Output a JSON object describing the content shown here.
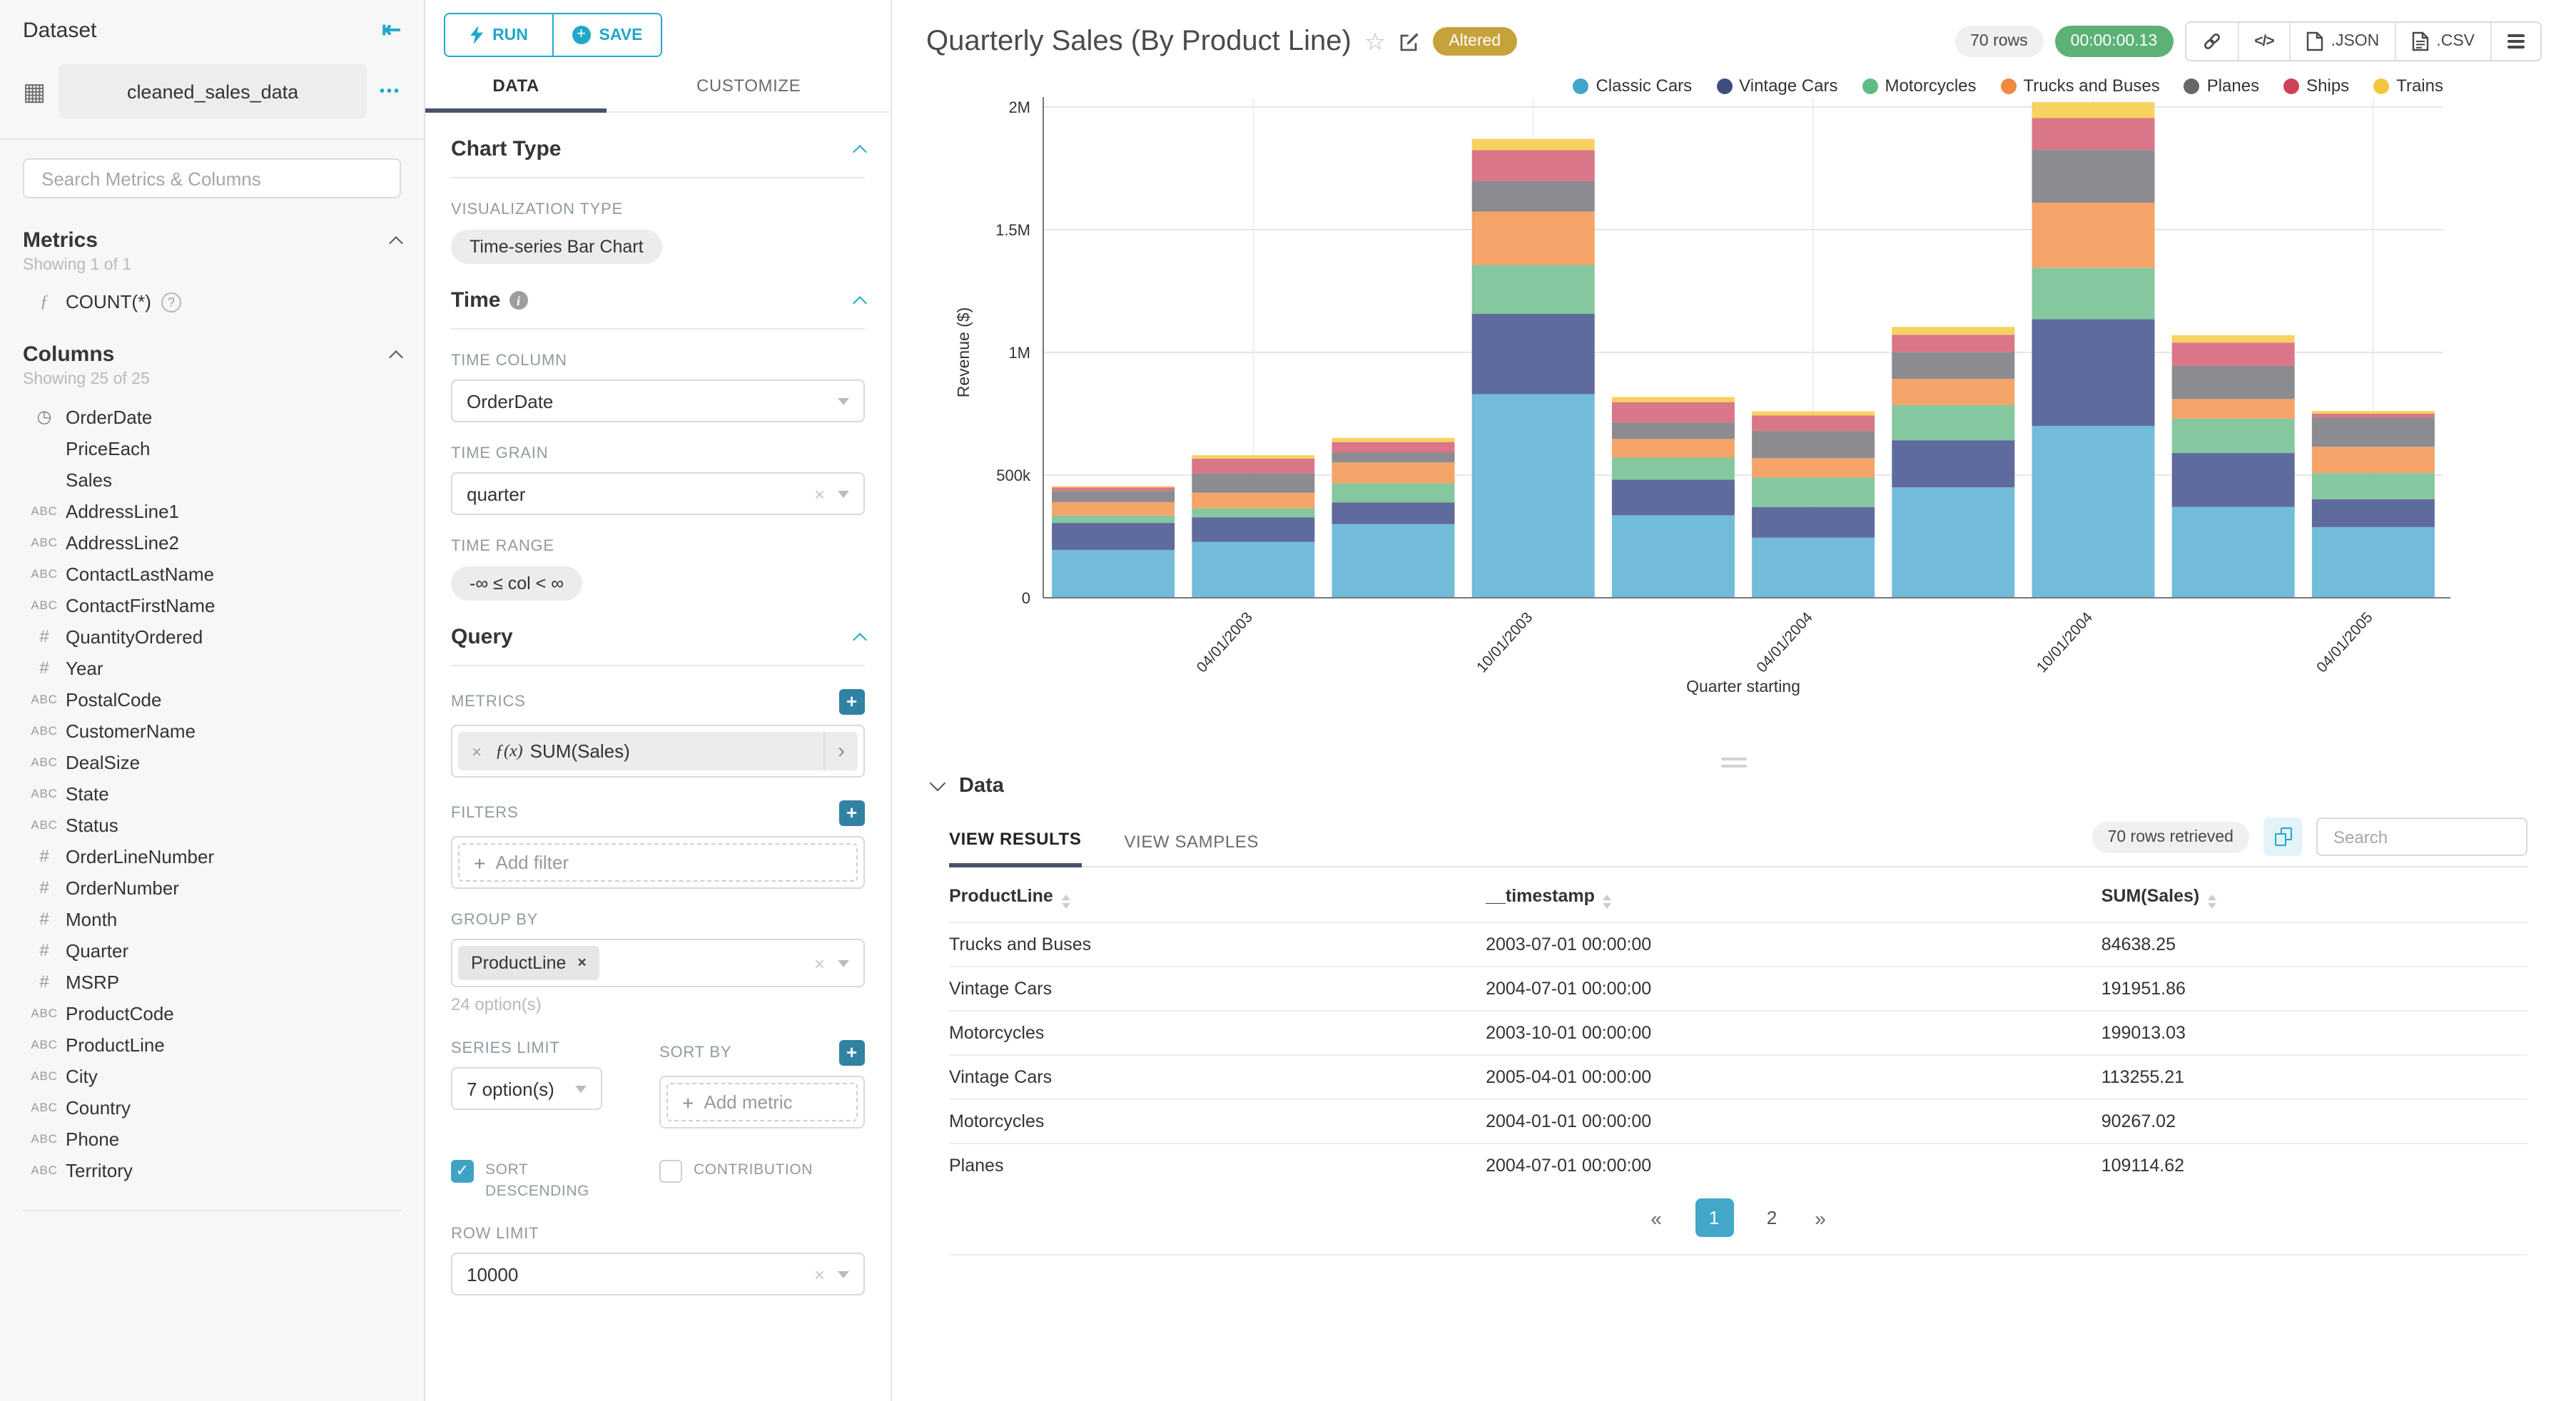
{
  "app": {
    "accent": "#20A7C9",
    "tab_underline": "#4A5268",
    "plus_button": "#3182A3",
    "checkbox_on": "#41A3C4",
    "pagination_active": "#41A8C9",
    "timer_green": "#5CB176",
    "altered_gold": "#C6A23B"
  },
  "icons": {
    "collapse": "⇤",
    "dataset_grid": "▦",
    "kebab": "•••",
    "function": "ƒ",
    "metric_fn": "ƒ(x)",
    "help": "?",
    "clock": "◷",
    "plus": "+",
    "clear": "×",
    "chip_arrow": "›",
    "check": "✓"
  },
  "sidebar": {
    "title": "Dataset",
    "dataset_name": "cleaned_sales_data",
    "search_placeholder": "Search Metrics & Columns",
    "metrics_section": {
      "title": "Metrics",
      "showing": "Showing 1 of 1",
      "metric_label": "COUNT(*)"
    },
    "columns_section": {
      "title": "Columns",
      "showing": "Showing 25 of 25",
      "items": [
        {
          "type": "time",
          "label": "OrderDate"
        },
        {
          "type": "",
          "label": "PriceEach"
        },
        {
          "type": "",
          "label": "Sales"
        },
        {
          "type": "str",
          "label": "AddressLine1"
        },
        {
          "type": "str",
          "label": "AddressLine2"
        },
        {
          "type": "str",
          "label": "ContactLastName"
        },
        {
          "type": "str",
          "label": "ContactFirstName"
        },
        {
          "type": "num",
          "label": "QuantityOrdered"
        },
        {
          "type": "num",
          "label": "Year"
        },
        {
          "type": "str",
          "label": "PostalCode"
        },
        {
          "type": "str",
          "label": "CustomerName"
        },
        {
          "type": "str",
          "label": "DealSize"
        },
        {
          "type": "str",
          "label": "State"
        },
        {
          "type": "str",
          "label": "Status"
        },
        {
          "type": "num",
          "label": "OrderLineNumber"
        },
        {
          "type": "num",
          "label": "OrderNumber"
        },
        {
          "type": "num",
          "label": "Month"
        },
        {
          "type": "num",
          "label": "Quarter"
        },
        {
          "type": "num",
          "label": "MSRP"
        },
        {
          "type": "str",
          "label": "ProductCode"
        },
        {
          "type": "str",
          "label": "ProductLine"
        },
        {
          "type": "str",
          "label": "City"
        },
        {
          "type": "str",
          "label": "Country"
        },
        {
          "type": "str",
          "label": "Phone"
        },
        {
          "type": "str",
          "label": "Territory"
        }
      ]
    }
  },
  "panel": {
    "run_label": "RUN",
    "save_label": "SAVE",
    "tabs": {
      "data": "DATA",
      "customize": "CUSTOMIZE"
    },
    "chart_type": {
      "title": "Chart Type",
      "viz_label": "VISUALIZATION TYPE",
      "viz_value": "Time-series Bar Chart"
    },
    "time": {
      "title": "Time",
      "column_label": "TIME COLUMN",
      "column_value": "OrderDate",
      "grain_label": "TIME GRAIN",
      "grain_value": "quarter",
      "range_label": "TIME RANGE",
      "range_value": "-∞ ≤ col < ∞"
    },
    "query": {
      "title": "Query",
      "metrics_label": "METRICS",
      "metric_value": "SUM(Sales)",
      "filters_label": "FILTERS",
      "add_filter": "Add filter",
      "group_by_label": "GROUP BY",
      "group_by_value": "ProductLine",
      "group_by_note": "24 option(s)",
      "series_limit_label": "SERIES LIMIT",
      "series_limit_value": "7 option(s)",
      "sort_by_label": "SORT BY",
      "add_metric": "Add metric",
      "sort_desc_label": "SORT DESCENDING",
      "sort_desc_checked": true,
      "contribution_label": "CONTRIBUTION",
      "contribution_checked": false,
      "row_limit_label": "ROW LIMIT",
      "row_limit_value": "10000"
    }
  },
  "header": {
    "title": "Quarterly Sales (By Product Line)",
    "altered": "Altered",
    "rows_pill": "70 rows",
    "timer": "00:00:00.13",
    "json_label": ".JSON",
    "csv_label": ".CSV"
  },
  "chart_data": {
    "type": "bar",
    "stacked": true,
    "title": "Quarterly Sales (By Product Line)",
    "xlabel": "Quarter starting",
    "ylabel": "Revenue ($)",
    "ylim": [
      0,
      2000000
    ],
    "yticks": [
      "0",
      "500k",
      "1M",
      "1.5M",
      "2M"
    ],
    "grid": true,
    "legend_position": "top",
    "x": [
      "01/01/2003",
      "04/01/2003",
      "07/01/2003",
      "10/01/2003",
      "01/01/2004",
      "04/01/2004",
      "07/01/2004",
      "10/01/2004",
      "01/01/2005",
      "04/01/2005"
    ],
    "x_tick_labels": [
      "04/01/2003",
      "10/01/2003",
      "04/01/2004",
      "10/01/2004",
      "04/01/2005"
    ],
    "series": [
      {
        "name": "Classic Cars",
        "color": "#72BCD9",
        "dot": "#41A5C9",
        "values": [
          195000,
          228000,
          300000,
          830000,
          336000,
          245000,
          450000,
          700000,
          370000,
          288000
        ]
      },
      {
        "name": "Vintage Cars",
        "color": "#5F6B9D",
        "dot": "#3F4D7F",
        "values": [
          110000,
          100000,
          88000,
          327000,
          145000,
          125000,
          191952,
          435000,
          220000,
          113255
        ]
      },
      {
        "name": "Motorcycles",
        "color": "#85C79F",
        "dot": "#5FBB84",
        "values": [
          30000,
          36000,
          79000,
          199013,
          90267,
          120000,
          143000,
          210000,
          140000,
          107000
        ]
      },
      {
        "name": "Trucks and Buses",
        "color": "#F4A469",
        "dot": "#F2893F",
        "values": [
          55000,
          64000,
          84638,
          218000,
          76000,
          79000,
          107000,
          265000,
          80000,
          107000
        ]
      },
      {
        "name": "Planes",
        "color": "#8B8B90",
        "dot": "#67676B",
        "values": [
          45000,
          79000,
          40000,
          124000,
          67000,
          110000,
          109115,
          215000,
          135000,
          120000
        ]
      },
      {
        "name": "Ships",
        "color": "#D97788",
        "dot": "#CC4357",
        "values": [
          15000,
          60000,
          43000,
          126000,
          83000,
          64000,
          71000,
          130000,
          95000,
          15000
        ]
      },
      {
        "name": "Trains",
        "color": "#F7D260",
        "dot": "#F4C63E",
        "values": [
          5000,
          14000,
          17000,
          46000,
          21000,
          17000,
          32000,
          65000,
          30000,
          11000
        ]
      }
    ]
  },
  "results": {
    "section_title": "Data",
    "tab_results": "VIEW RESULTS",
    "tab_samples": "VIEW SAMPLES",
    "rows_retrieved": "70 rows retrieved",
    "search_placeholder": "Search",
    "columns": [
      "ProductLine",
      "__timestamp",
      "SUM(Sales)"
    ],
    "rows": [
      [
        "Trucks and Buses",
        "2003-07-01 00:00:00",
        "84638.25"
      ],
      [
        "Vintage Cars",
        "2004-07-01 00:00:00",
        "191951.86"
      ],
      [
        "Motorcycles",
        "2003-10-01 00:00:00",
        "199013.03"
      ],
      [
        "Vintage Cars",
        "2005-04-01 00:00:00",
        "113255.21"
      ],
      [
        "Motorcycles",
        "2004-01-01 00:00:00",
        "90267.02"
      ],
      [
        "Planes",
        "2004-07-01 00:00:00",
        "109114.62"
      ]
    ],
    "pagination": {
      "prev": "«",
      "pages": [
        "1",
        "2"
      ],
      "active": "1",
      "next": "»"
    }
  }
}
